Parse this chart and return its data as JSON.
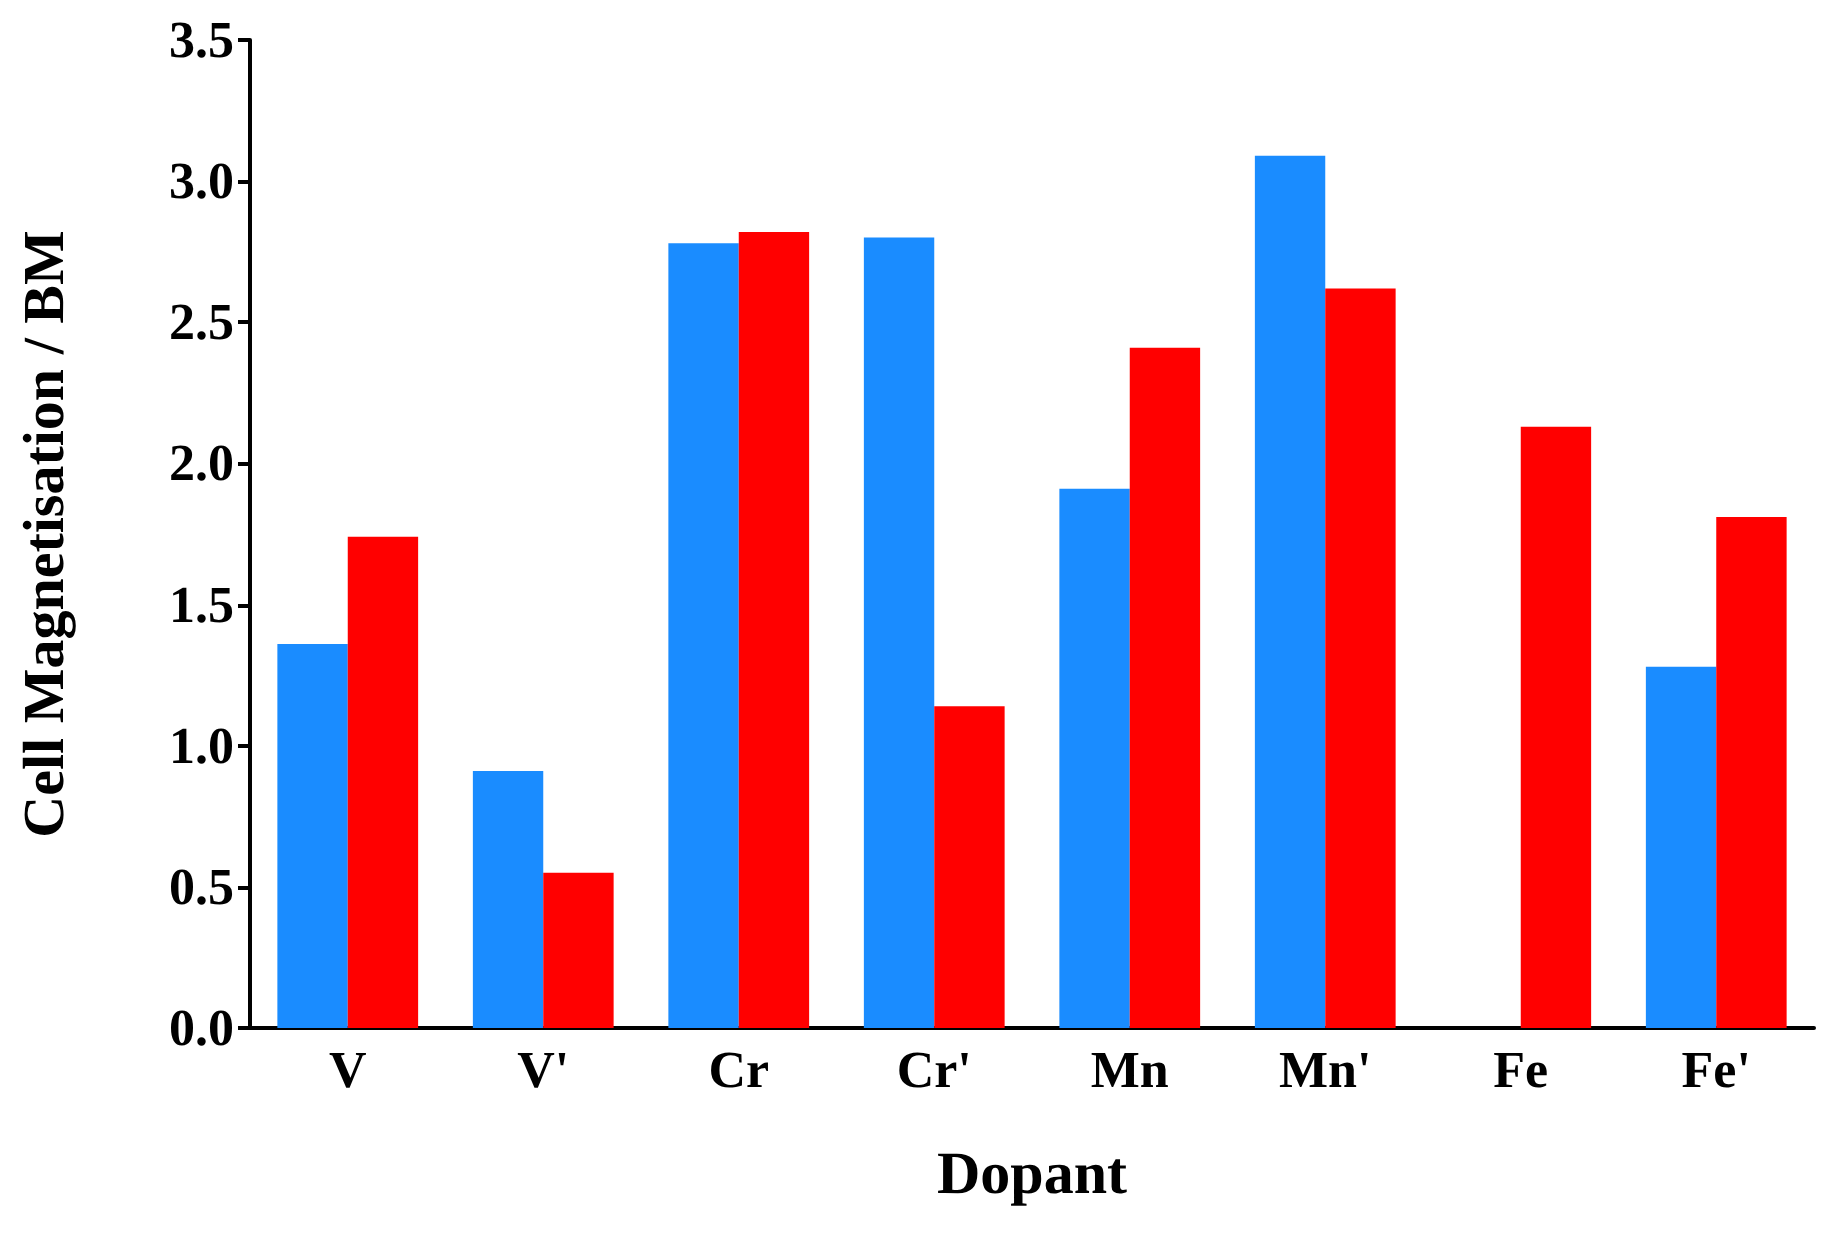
{
  "chart_data": {
    "type": "bar",
    "xlabel": "Dopant",
    "ylabel": "Cell Magnetisation / BM",
    "categories": [
      "V",
      "V'",
      "Cr",
      "Cr'",
      "Mn",
      "Mn'",
      "Fe",
      "Fe'"
    ],
    "series": [
      {
        "color": "#1a8cff",
        "values": [
          1.36,
          0.91,
          2.78,
          2.8,
          1.91,
          3.09,
          null,
          1.28
        ]
      },
      {
        "color": "#ff0000",
        "values": [
          1.74,
          0.55,
          2.82,
          1.14,
          2.41,
          2.62,
          2.13,
          1.81
        ]
      }
    ],
    "ylim": [
      0,
      3.5
    ],
    "yticks": [
      {
        "value": 0,
        "label": "0.0"
      },
      {
        "value": 0.5,
        "label": "0.5"
      },
      {
        "value": 1,
        "label": "1.0"
      },
      {
        "value": 1.5,
        "label": "1.5"
      },
      {
        "value": 2,
        "label": "2.0"
      },
      {
        "value": 2.5,
        "label": "2.5"
      },
      {
        "value": 3,
        "label": "3.0"
      },
      {
        "value": 3.5,
        "label": "3.5"
      }
    ],
    "grid": false
  }
}
